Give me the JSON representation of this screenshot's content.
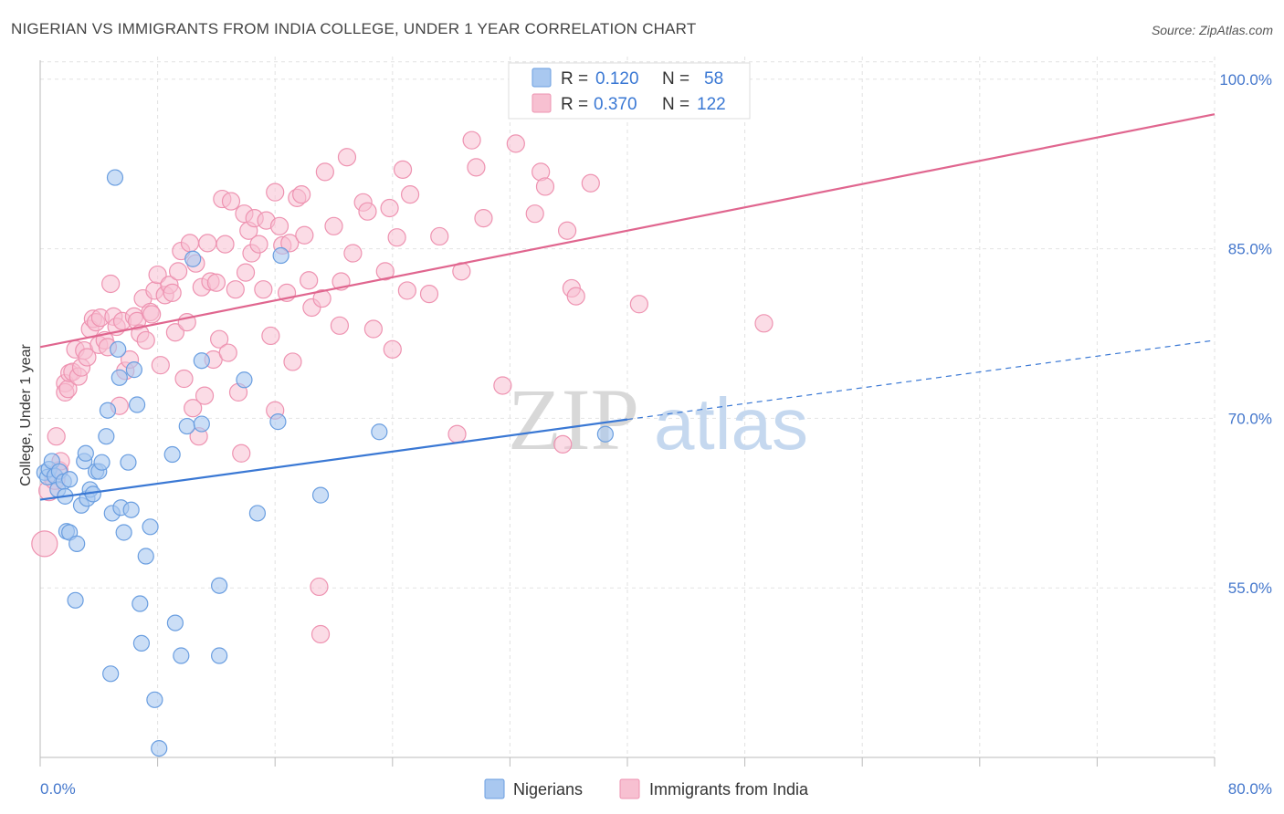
{
  "title": "NIGERIAN VS IMMIGRANTS FROM INDIA COLLEGE, UNDER 1 YEAR CORRELATION CHART",
  "source": "Source: ZipAtlas.com",
  "watermark": {
    "zip": "ZIP",
    "atlas": "atlas"
  },
  "legend": {
    "rows": [
      {
        "r_label": "R = ",
        "r_value": "0.120",
        "n_label": "N = ",
        "n_value": "58"
      },
      {
        "r_label": "R = ",
        "r_value": "0.370",
        "n_label": "N = ",
        "n_value": "122"
      }
    ]
  },
  "bottom_legend": {
    "nigerians": "Nigerians",
    "india": "Immigrants from India"
  },
  "colors": {
    "nigerians_fill": "#a9c8f0",
    "nigerians_stroke": "#6a9ee0",
    "nigerians_line": "#3a78d4",
    "india_fill": "#f7c0d1",
    "india_stroke": "#ee93b1",
    "india_line": "#e0668f",
    "tick_text": "#4477cc",
    "grid": "#e2e2e2"
  },
  "chart_data": {
    "type": "scatter",
    "xlabel": "",
    "ylabel": "College, Under 1 year",
    "xlim": [
      0,
      80
    ],
    "ylim": [
      40,
      102
    ],
    "x_tick_labels": [
      {
        "value": 0,
        "label": "0.0%"
      },
      {
        "value": 80,
        "label": "80.0%"
      }
    ],
    "y_tick_labels": [
      {
        "value": 100,
        "label": "100.0%"
      },
      {
        "value": 85,
        "label": "85.0%"
      },
      {
        "value": 70,
        "label": "70.0%"
      },
      {
        "value": 55,
        "label": "55.0%"
      }
    ],
    "grid": true,
    "legend_position": "top-center",
    "series": [
      {
        "name": "Nigerians",
        "R": 0.12,
        "N": 58,
        "trend": {
          "x0": 0,
          "y0": 62.8,
          "x1": 40,
          "y1": 69.9,
          "dash_x1": 80,
          "dash_y1": 76.9
        },
        "points": [
          [
            0.3,
            65.2
          ],
          [
            0.5,
            64.8
          ],
          [
            0.6,
            65.5
          ],
          [
            0.8,
            66.2
          ],
          [
            1.0,
            64.9
          ],
          [
            1.2,
            63.7
          ],
          [
            1.3,
            65.3
          ],
          [
            1.6,
            64.4
          ],
          [
            1.7,
            63.1
          ],
          [
            1.8,
            60.0
          ],
          [
            2.0,
            64.6
          ],
          [
            2.0,
            59.9
          ],
          [
            2.4,
            53.9
          ],
          [
            2.5,
            58.9
          ],
          [
            2.8,
            62.3
          ],
          [
            3.0,
            66.2
          ],
          [
            3.1,
            66.9
          ],
          [
            3.2,
            62.9
          ],
          [
            3.4,
            63.7
          ],
          [
            3.6,
            63.3
          ],
          [
            3.8,
            65.3
          ],
          [
            4.0,
            65.3
          ],
          [
            4.2,
            66.1
          ],
          [
            4.5,
            68.4
          ],
          [
            4.6,
            70.7
          ],
          [
            4.9,
            61.6
          ],
          [
            4.8,
            47.4
          ],
          [
            5.1,
            91.3
          ],
          [
            5.3,
            76.1
          ],
          [
            5.4,
            73.6
          ],
          [
            5.5,
            62.1
          ],
          [
            5.7,
            59.9
          ],
          [
            6.0,
            66.1
          ],
          [
            6.2,
            61.9
          ],
          [
            6.4,
            74.3
          ],
          [
            6.6,
            71.2
          ],
          [
            6.8,
            53.6
          ],
          [
            6.9,
            50.1
          ],
          [
            7.2,
            57.8
          ],
          [
            7.5,
            60.4
          ],
          [
            7.8,
            45.1
          ],
          [
            8.1,
            40.8
          ],
          [
            9.0,
            66.8
          ],
          [
            9.2,
            51.9
          ],
          [
            9.6,
            49.0
          ],
          [
            10.0,
            69.3
          ],
          [
            10.4,
            84.1
          ],
          [
            11.0,
            69.5
          ],
          [
            11.0,
            75.1
          ],
          [
            12.2,
            55.2
          ],
          [
            12.2,
            49.0
          ],
          [
            13.9,
            73.4
          ],
          [
            14.8,
            61.6
          ],
          [
            16.2,
            69.7
          ],
          [
            16.4,
            84.4
          ],
          [
            19.1,
            63.2
          ],
          [
            23.1,
            68.8
          ],
          [
            38.5,
            68.6
          ]
        ]
      },
      {
        "name": "Immigrants from India",
        "R": 0.37,
        "N": 122,
        "trend": {
          "x0": 0,
          "y0": 76.3,
          "x1": 80,
          "y1": 96.9
        },
        "points": [
          [
            0.3,
            58.9
          ],
          [
            0.6,
            63.6
          ],
          [
            1.0,
            64.6
          ],
          [
            1.1,
            68.4
          ],
          [
            1.3,
            65.4
          ],
          [
            1.4,
            66.2
          ],
          [
            1.7,
            73.1
          ],
          [
            1.7,
            72.3
          ],
          [
            1.9,
            72.6
          ],
          [
            2.0,
            74.0
          ],
          [
            2.2,
            74.1
          ],
          [
            2.4,
            76.1
          ],
          [
            2.6,
            73.7
          ],
          [
            2.8,
            74.5
          ],
          [
            3.0,
            76.0
          ],
          [
            3.2,
            75.4
          ],
          [
            3.4,
            77.9
          ],
          [
            3.6,
            78.8
          ],
          [
            3.8,
            78.5
          ],
          [
            4.0,
            76.5
          ],
          [
            4.1,
            78.9
          ],
          [
            4.4,
            76.9
          ],
          [
            4.6,
            76.3
          ],
          [
            4.8,
            81.9
          ],
          [
            5.0,
            79.0
          ],
          [
            5.2,
            78.1
          ],
          [
            5.4,
            71.1
          ],
          [
            5.6,
            78.6
          ],
          [
            5.8,
            74.2
          ],
          [
            6.1,
            75.2
          ],
          [
            6.4,
            79.0
          ],
          [
            6.6,
            78.6
          ],
          [
            6.8,
            77.5
          ],
          [
            7.0,
            80.6
          ],
          [
            7.2,
            76.9
          ],
          [
            7.5,
            79.4
          ],
          [
            7.6,
            79.2
          ],
          [
            7.8,
            81.3
          ],
          [
            8.0,
            82.7
          ],
          [
            8.2,
            74.7
          ],
          [
            8.5,
            80.9
          ],
          [
            8.8,
            81.8
          ],
          [
            9.0,
            81.1
          ],
          [
            9.2,
            77.6
          ],
          [
            9.4,
            83.0
          ],
          [
            9.6,
            84.8
          ],
          [
            9.8,
            73.5
          ],
          [
            10.0,
            78.5
          ],
          [
            10.2,
            85.5
          ],
          [
            10.4,
            70.9
          ],
          [
            10.6,
            83.7
          ],
          [
            10.8,
            68.4
          ],
          [
            11.0,
            81.6
          ],
          [
            11.2,
            72.0
          ],
          [
            11.4,
            85.5
          ],
          [
            11.6,
            82.1
          ],
          [
            11.8,
            75.2
          ],
          [
            12.0,
            82.0
          ],
          [
            12.2,
            77.0
          ],
          [
            12.4,
            89.4
          ],
          [
            12.6,
            85.4
          ],
          [
            12.8,
            75.8
          ],
          [
            13.0,
            89.2
          ],
          [
            13.3,
            81.4
          ],
          [
            13.5,
            72.3
          ],
          [
            13.7,
            66.9
          ],
          [
            13.9,
            88.1
          ],
          [
            14.0,
            82.9
          ],
          [
            14.2,
            86.6
          ],
          [
            14.4,
            84.6
          ],
          [
            14.6,
            87.7
          ],
          [
            14.9,
            85.4
          ],
          [
            15.2,
            81.4
          ],
          [
            15.4,
            87.5
          ],
          [
            15.7,
            77.3
          ],
          [
            16.0,
            90.0
          ],
          [
            16.0,
            70.7
          ],
          [
            16.3,
            87.0
          ],
          [
            16.5,
            85.3
          ],
          [
            16.8,
            81.1
          ],
          [
            17.0,
            85.5
          ],
          [
            17.2,
            75.0
          ],
          [
            17.5,
            89.5
          ],
          [
            17.8,
            89.8
          ],
          [
            18.0,
            86.2
          ],
          [
            18.3,
            82.2
          ],
          [
            18.5,
            79.8
          ],
          [
            19.0,
            55.1
          ],
          [
            19.1,
            50.9
          ],
          [
            19.2,
            80.6
          ],
          [
            19.4,
            91.8
          ],
          [
            20.0,
            87.0
          ],
          [
            20.4,
            78.2
          ],
          [
            20.5,
            82.1
          ],
          [
            20.9,
            93.1
          ],
          [
            21.3,
            84.6
          ],
          [
            22.0,
            89.1
          ],
          [
            22.3,
            88.3
          ],
          [
            22.7,
            77.9
          ],
          [
            23.5,
            83.0
          ],
          [
            23.8,
            88.6
          ],
          [
            24.0,
            76.1
          ],
          [
            24.3,
            86.0
          ],
          [
            24.7,
            92.0
          ],
          [
            25.0,
            81.3
          ],
          [
            25.2,
            89.8
          ],
          [
            26.5,
            81.0
          ],
          [
            27.2,
            86.1
          ],
          [
            28.4,
            68.6
          ],
          [
            28.7,
            83.0
          ],
          [
            29.4,
            94.6
          ],
          [
            29.7,
            92.2
          ],
          [
            30.2,
            87.7
          ],
          [
            31.5,
            72.9
          ],
          [
            32.4,
            94.3
          ],
          [
            33.7,
            88.1
          ],
          [
            34.1,
            91.8
          ],
          [
            34.4,
            90.5
          ],
          [
            35.6,
            67.7
          ],
          [
            35.9,
            86.6
          ],
          [
            36.2,
            81.5
          ],
          [
            36.5,
            80.8
          ],
          [
            37.5,
            90.8
          ],
          [
            40.8,
            80.1
          ],
          [
            49.3,
            78.4
          ]
        ]
      }
    ]
  }
}
